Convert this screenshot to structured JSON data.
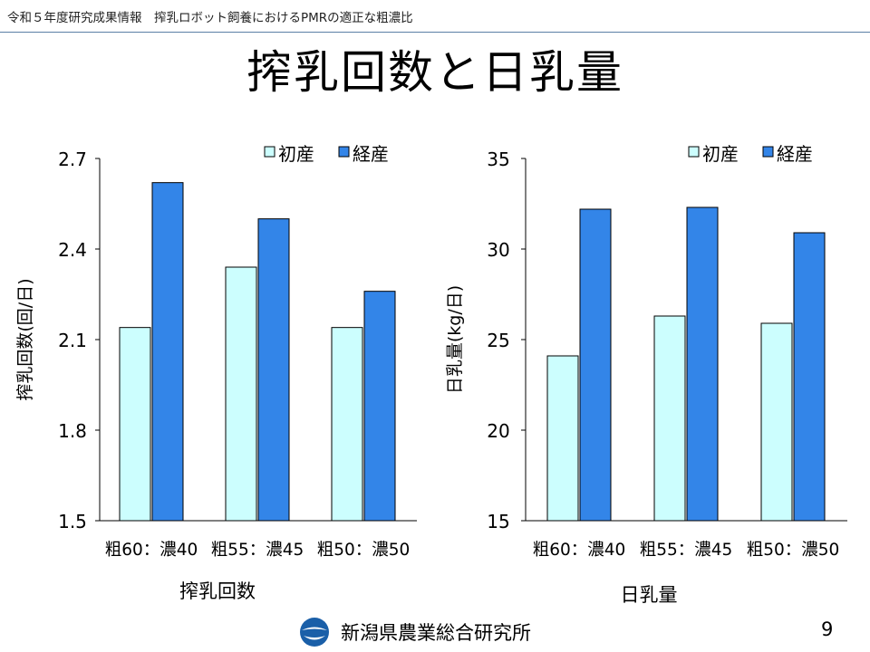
{
  "header": {
    "text": "令和５年度研究成果情報　搾乳ロボット飼養におけるPMRの適正な粗濃比"
  },
  "title": "搾乳回数と日乳量",
  "colors": {
    "series1": "#ccfefe",
    "series2": "#3385e8",
    "header_line": "#5b7fa6"
  },
  "chart_data": [
    {
      "type": "bar",
      "categories": [
        "粗60：濃40",
        "粗55：濃45",
        "粗50：濃50"
      ],
      "series": [
        {
          "name": "初産",
          "values": [
            2.14,
            2.34,
            2.14
          ]
        },
        {
          "name": "経産",
          "values": [
            2.62,
            2.5,
            2.26
          ]
        }
      ],
      "ylabel": "搾乳回数(回/日)",
      "caption": "搾乳回数",
      "ylim": [
        1.5,
        2.7
      ],
      "yticks": [
        "1.5",
        "1.8",
        "2.1",
        "2.4",
        "2.7"
      ],
      "legend": "top-right",
      "grid": false
    },
    {
      "type": "bar",
      "categories": [
        "粗60：濃40",
        "粗55：濃45",
        "粗50：濃50"
      ],
      "series": [
        {
          "name": "初産",
          "values": [
            24.1,
            26.3,
            25.9
          ]
        },
        {
          "name": "経産",
          "values": [
            32.2,
            32.3,
            30.9
          ]
        }
      ],
      "ylabel": "日乳量(kg/日)",
      "caption": "日乳量",
      "ylim": [
        15,
        35
      ],
      "yticks": [
        "15",
        "20",
        "25",
        "30",
        "35"
      ],
      "legend": "top-right",
      "grid": false
    }
  ],
  "footer": {
    "org": "新潟県農業総合研究所",
    "page": "9",
    "logo_icon": "prefecture-logo-icon"
  }
}
